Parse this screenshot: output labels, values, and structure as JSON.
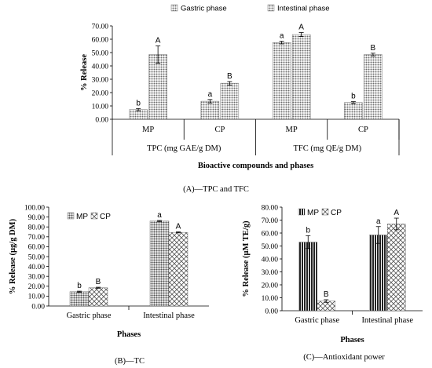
{
  "chart_data": [
    {
      "panel": "A",
      "type": "bar",
      "caption": "(A)—TPC and TFC",
      "xlabel": "Bioactive compounds and phases",
      "ylabel": "% Release",
      "ylim": [
        0,
        70
      ],
      "yticks": [
        "0.00",
        "10.00",
        "20.00",
        "30.00",
        "40.00",
        "50.00",
        "60.00",
        "70.00"
      ],
      "groups": [
        "TPC (mg GAE/g DM)",
        "TFC (mg QE/g DM)"
      ],
      "categories": [
        "MP",
        "CP",
        "MP",
        "CP"
      ],
      "legend_position": "top",
      "series": [
        {
          "name": "Gastric phase",
          "values": [
            7.2,
            13.5,
            57.5,
            12.5
          ],
          "errors": [
            0.8,
            1.3,
            1.0,
            0.7
          ],
          "labels": [
            "b",
            "a",
            "a",
            "b"
          ],
          "color": "#7f7f7f"
        },
        {
          "name": "Intestinal phase",
          "values": [
            48.5,
            27.0,
            63.5,
            48.5
          ],
          "errors": [
            6.5,
            1.3,
            1.5,
            1.0
          ],
          "labels": [
            "A",
            "B",
            "A",
            "B"
          ],
          "color": "#7f7f7f"
        }
      ]
    },
    {
      "panel": "B",
      "type": "bar",
      "caption": "(B)—TC",
      "xlabel": "Phases",
      "ylabel": "% Release (µg/g DM)",
      "ylim": [
        0,
        100
      ],
      "yticks": [
        "0.00",
        "10.00",
        "20.00",
        "30.00",
        "40.00",
        "50.00",
        "60.00",
        "70.00",
        "80.00",
        "90.00",
        "100.00"
      ],
      "categories": [
        "Gastric phase",
        "Intestinal phase"
      ],
      "legend_position": "top-left",
      "series": [
        {
          "name": "MP",
          "values": [
            14.5,
            86.0
          ],
          "errors": [
            0.5,
            0.5
          ],
          "labels": [
            "b",
            "a"
          ],
          "color": "#7f7f7f"
        },
        {
          "name": "CP",
          "values": [
            18.5,
            74.5
          ],
          "errors": [
            0.5,
            0.5
          ],
          "labels": [
            "B",
            "A"
          ],
          "color": "#7f7f7f"
        }
      ]
    },
    {
      "panel": "C",
      "type": "bar",
      "caption": "(C)—Antioxidant power",
      "xlabel": "Phases",
      "ylabel": "% Release (µM TE/g)",
      "ylim": [
        0,
        80
      ],
      "yticks": [
        "0.00",
        "10.00",
        "20.00",
        "30.00",
        "40.00",
        "50.00",
        "60.00",
        "70.00",
        "80.00"
      ],
      "categories": [
        "Gastric phase",
        "Intestinal phase"
      ],
      "legend_position": "top-left",
      "series": [
        {
          "name": "MP",
          "values": [
            53.0,
            58.5
          ],
          "errors": [
            5.0,
            6.5
          ],
          "labels": [
            "b",
            "a"
          ],
          "color": "#333333"
        },
        {
          "name": "CP",
          "values": [
            7.5,
            67.0
          ],
          "errors": [
            1.0,
            4.5
          ],
          "labels": [
            "B",
            "A"
          ],
          "color": "#555555"
        }
      ]
    }
  ]
}
